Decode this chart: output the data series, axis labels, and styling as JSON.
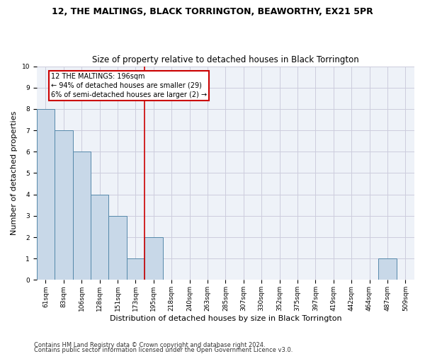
{
  "title1": "12, THE MALTINGS, BLACK TORRINGTON, BEAWORTHY, EX21 5PR",
  "title2": "Size of property relative to detached houses in Black Torrington",
  "xlabel": "Distribution of detached houses by size in Black Torrington",
  "ylabel": "Number of detached properties",
  "footnote1": "Contains HM Land Registry data © Crown copyright and database right 2024.",
  "footnote2": "Contains public sector information licensed under the Open Government Licence v3.0.",
  "bin_labels": [
    "61sqm",
    "83sqm",
    "106sqm",
    "128sqm",
    "151sqm",
    "173sqm",
    "195sqm",
    "218sqm",
    "240sqm",
    "263sqm",
    "285sqm",
    "307sqm",
    "330sqm",
    "352sqm",
    "375sqm",
    "397sqm",
    "419sqm",
    "442sqm",
    "464sqm",
    "487sqm",
    "509sqm"
  ],
  "bar_values": [
    8,
    7,
    6,
    4,
    3,
    1,
    2,
    0,
    0,
    0,
    0,
    0,
    0,
    0,
    0,
    0,
    0,
    0,
    0,
    1,
    0
  ],
  "bar_color": "#c8d8e8",
  "bar_edge_color": "#5588aa",
  "subject_line_bin": 6,
  "subject_line_color": "#cc0000",
  "ylim": [
    0,
    10
  ],
  "yticks": [
    0,
    1,
    2,
    3,
    4,
    5,
    6,
    7,
    8,
    9,
    10
  ],
  "annotation_line1": "12 THE MALTINGS: 196sqm",
  "annotation_line2": "← 94% of detached houses are smaller (29)",
  "annotation_line3": "6% of semi-detached houses are larger (2) →",
  "annotation_box_color": "#cc0000",
  "grid_color": "#ccccdd",
  "bg_color": "#eef2f8",
  "title1_fontsize": 9,
  "title2_fontsize": 8.5,
  "ylabel_fontsize": 8,
  "xlabel_fontsize": 8,
  "tick_fontsize": 6.5,
  "footnote_fontsize": 6,
  "annot_fontsize": 7
}
